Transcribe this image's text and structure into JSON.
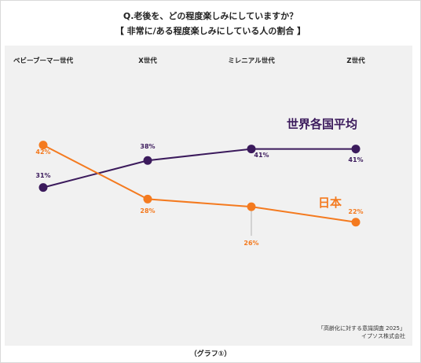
{
  "title": "Q.老後を、どの程度楽しみにしていますか？",
  "subtitle": "【 非常に/ある程度楽しみにしている人の割合 】",
  "source_line1": "「高齢化に対する意識調査 2025」",
  "source_line2": "イプソス株式会社",
  "caption": "（グラフ①）",
  "colors": {
    "global": "#3b1a5c",
    "japan": "#f47a1f",
    "background": "#f1f1f1"
  },
  "chart_data": {
    "type": "line",
    "categories": [
      "ベビーブーマー世代",
      "X世代",
      "ミレニアル世代",
      "Z世代"
    ],
    "series": [
      {
        "name": "世界各国平均",
        "values": [
          31,
          38,
          41,
          41
        ],
        "labels": [
          "31%",
          "38%",
          "41%",
          "41%"
        ]
      },
      {
        "name": "日本",
        "values": [
          42,
          28,
          26,
          22
        ],
        "labels": [
          "42%",
          "28%",
          "26%",
          "22%"
        ]
      }
    ],
    "ylim": [
      14,
      56
    ],
    "grid": false,
    "xlabel": "",
    "ylabel": ""
  }
}
